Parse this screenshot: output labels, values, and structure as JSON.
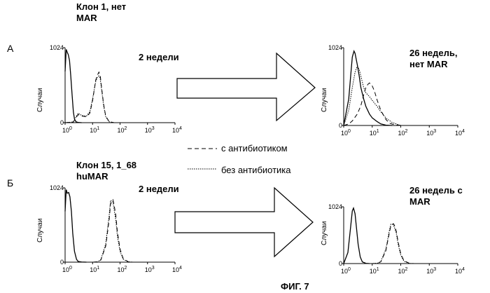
{
  "figure": {
    "caption": "ФИГ. 7",
    "panel_a": {
      "letter": "А",
      "clone_title_line1": "Клон 1, нет",
      "clone_title_line2": "MAR"
    },
    "panel_b": {
      "letter": "Б",
      "clone_title_line1": "Клон 15, 1_68",
      "clone_title_line2": "huMAR"
    },
    "legend": {
      "with_antibiotic": "с антибиотиком",
      "without_antibiotic": "без антибиотика"
    },
    "line_colors": {
      "solid": "#000000",
      "dashed": "#000000",
      "dotted": "#000000"
    }
  },
  "chart_data": [
    {
      "type": "line",
      "title_line1": "2 недели",
      "title_line2": "",
      "ylabel": "Случаи",
      "ytick": "1024",
      "ylim": [
        0,
        1024
      ],
      "x_scale": "log",
      "xlim": [
        1,
        10000
      ],
      "xticks": [
        {
          "base": "10",
          "exp": "0"
        },
        {
          "base": "10",
          "exp": "1"
        },
        {
          "base": "10",
          "exp": "2"
        },
        {
          "base": "10",
          "exp": "3"
        },
        {
          "base": "10",
          "exp": "4"
        }
      ],
      "series": [
        {
          "style": "solid",
          "x": [
            1,
            1.1,
            1.2,
            1.3,
            1.45,
            1.6,
            1.8,
            2.0,
            2.2,
            2.5,
            3.0,
            4.0
          ],
          "y": [
            700,
            1000,
            960,
            930,
            850,
            650,
            380,
            150,
            50,
            12,
            3,
            0
          ]
        },
        {
          "style": "dashed",
          "x": [
            1,
            2,
            2.5,
            3,
            4,
            6,
            8,
            10,
            13,
            15,
            17,
            19,
            21,
            25,
            30,
            40,
            60
          ],
          "y": [
            0,
            10,
            70,
            110,
            90,
            80,
            130,
            300,
            580,
            650,
            690,
            640,
            500,
            260,
            90,
            15,
            0
          ]
        },
        {
          "style": "dotted",
          "x": [
            1,
            2,
            2.5,
            3,
            4,
            6,
            8,
            10,
            13,
            15,
            17,
            19,
            21,
            25,
            30,
            40,
            60
          ],
          "y": [
            0,
            10,
            80,
            130,
            100,
            90,
            150,
            330,
            560,
            620,
            640,
            600,
            470,
            240,
            80,
            12,
            0
          ]
        }
      ]
    },
    {
      "type": "line",
      "title_line1": "26 недель,",
      "title_line2": "нет MAR",
      "ylabel": "Случаи",
      "ytick": "1024",
      "ylim": [
        0,
        1024
      ],
      "x_scale": "log",
      "xlim": [
        1,
        10000
      ],
      "xticks": [
        {
          "base": "10",
          "exp": "0"
        },
        {
          "base": "10",
          "exp": "1"
        },
        {
          "base": "10",
          "exp": "2"
        },
        {
          "base": "10",
          "exp": "3"
        },
        {
          "base": "10",
          "exp": "4"
        }
      ],
      "series": [
        {
          "style": "solid",
          "x": [
            1,
            1.5,
            1.8,
            2.0,
            2.3,
            2.5,
            3.0,
            3.5,
            4,
            5,
            6,
            8,
            10,
            15,
            20,
            30,
            50
          ],
          "y": [
            0,
            350,
            700,
            900,
            980,
            950,
            800,
            650,
            500,
            350,
            250,
            150,
            100,
            50,
            20,
            5,
            0
          ]
        },
        {
          "style": "dashed",
          "x": [
            1,
            1.5,
            2,
            3,
            4,
            5,
            6,
            7,
            8,
            10,
            12,
            15,
            20,
            30,
            40,
            60,
            100
          ],
          "y": [
            0,
            20,
            60,
            150,
            260,
            400,
            500,
            540,
            560,
            520,
            450,
            330,
            200,
            80,
            30,
            10,
            0
          ]
        },
        {
          "style": "dotted",
          "x": [
            1,
            1.5,
            2,
            2.5,
            3,
            3.5,
            4,
            5,
            6,
            8,
            10,
            15,
            20,
            30,
            50,
            100
          ],
          "y": [
            0,
            200,
            500,
            700,
            780,
            740,
            650,
            500,
            430,
            380,
            330,
            250,
            180,
            100,
            40,
            0
          ]
        }
      ]
    },
    {
      "type": "line",
      "title_line1": "2 недели",
      "title_line2": "",
      "ylabel": "Случаи",
      "ytick": "1024",
      "ylim": [
        0,
        1024
      ],
      "x_scale": "log",
      "xlim": [
        1,
        10000
      ],
      "xticks": [
        {
          "base": "10",
          "exp": "0"
        },
        {
          "base": "10",
          "exp": "1"
        },
        {
          "base": "10",
          "exp": "2"
        },
        {
          "base": "10",
          "exp": "3"
        },
        {
          "base": "10",
          "exp": "4"
        }
      ],
      "series": [
        {
          "style": "solid",
          "x": [
            1,
            1.1,
            1.2,
            1.35,
            1.5,
            1.7,
            1.9,
            2.2,
            2.6,
            3.0,
            4.0,
            6.0
          ],
          "y": [
            700,
            1000,
            950,
            960,
            900,
            700,
            400,
            150,
            40,
            10,
            2,
            0
          ]
        },
        {
          "style": "dashed",
          "x": [
            1,
            10,
            15,
            20,
            30,
            40,
            45,
            55,
            60,
            70,
            80,
            100,
            130,
            200,
            300
          ],
          "y": [
            0,
            0,
            5,
            30,
            220,
            580,
            800,
            860,
            800,
            650,
            420,
            180,
            50,
            5,
            0
          ]
        },
        {
          "style": "dotted",
          "x": [
            1,
            10,
            15,
            20,
            30,
            40,
            45,
            55,
            60,
            70,
            80,
            100,
            130,
            200,
            300
          ],
          "y": [
            0,
            0,
            5,
            35,
            250,
            640,
            850,
            830,
            740,
            580,
            360,
            150,
            40,
            4,
            0
          ]
        }
      ]
    },
    {
      "type": "line",
      "title_line1": "26 недель с",
      "title_line2": "MAR",
      "ylabel": "Случаи",
      "ytick": "1024",
      "ylim": [
        0,
        1024
      ],
      "x_scale": "log",
      "xlim": [
        1,
        10000
      ],
      "xticks": [
        {
          "base": "10",
          "exp": "0"
        },
        {
          "base": "10",
          "exp": "1"
        },
        {
          "base": "10",
          "exp": "2"
        },
        {
          "base": "10",
          "exp": "3"
        },
        {
          "base": "10",
          "exp": "4"
        }
      ],
      "series": [
        {
          "style": "solid",
          "x": [
            1,
            1.4,
            1.7,
            2.0,
            2.2,
            2.5,
            2.8,
            3.2,
            3.8,
            4.5,
            6,
            8
          ],
          "y": [
            0,
            200,
            600,
            950,
            1000,
            900,
            650,
            350,
            120,
            30,
            5,
            0
          ]
        },
        {
          "style": "dashed",
          "x": [
            1,
            10,
            15,
            20,
            30,
            40,
            45,
            55,
            60,
            70,
            80,
            100,
            130,
            200,
            300
          ],
          "y": [
            0,
            0,
            5,
            30,
            230,
            560,
            680,
            720,
            690,
            580,
            400,
            180,
            50,
            5,
            0
          ]
        },
        {
          "style": "dotted",
          "x": [
            1,
            10,
            15,
            20,
            30,
            40,
            45,
            55,
            60,
            70,
            80,
            100,
            130,
            200,
            300
          ],
          "y": [
            0,
            0,
            5,
            35,
            260,
            600,
            710,
            700,
            650,
            540,
            360,
            150,
            40,
            4,
            0
          ]
        }
      ]
    }
  ]
}
